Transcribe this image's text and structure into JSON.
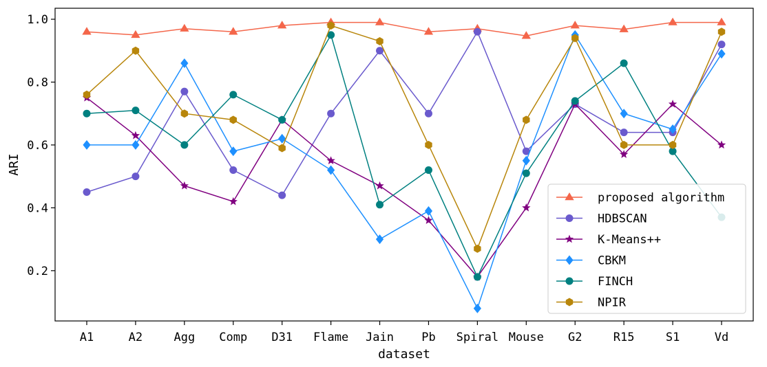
{
  "chart_data": {
    "type": "line",
    "xlabel": "dataset",
    "ylabel": "ARI",
    "categories": [
      "A1",
      "A2",
      "Agg",
      "Comp",
      "D31",
      "Flame",
      "Jain",
      "Pb",
      "Spiral",
      "Mouse",
      "G2",
      "R15",
      "S1",
      "Vd"
    ],
    "ylim": [
      0.04,
      1.035
    ],
    "yticks": [
      "0.2",
      "0.4",
      "0.6",
      "0.8",
      "1.0"
    ],
    "grid": false,
    "legend_position": "lower-right",
    "series": [
      {
        "name": "proposed algorithm",
        "color": "#f4664a",
        "marker": "triangle",
        "values": [
          0.96,
          0.95,
          0.97,
          0.96,
          0.98,
          0.99,
          0.99,
          0.96,
          0.97,
          0.947,
          0.98,
          0.968,
          0.99,
          0.99
        ]
      },
      {
        "name": "HDBSCAN",
        "color": "#6a5acd",
        "marker": "circle",
        "values": [
          0.45,
          0.5,
          0.77,
          0.52,
          0.44,
          0.7,
          0.9,
          0.7,
          0.96,
          0.58,
          0.73,
          0.64,
          0.64,
          0.92
        ]
      },
      {
        "name": "K-Means++",
        "color": "#800080",
        "marker": "star",
        "values": [
          0.75,
          0.63,
          0.47,
          0.42,
          0.68,
          0.55,
          0.47,
          0.36,
          0.18,
          0.4,
          0.73,
          0.57,
          0.73,
          0.6
        ]
      },
      {
        "name": "CBKM",
        "color": "#1e90ff",
        "marker": "diamond",
        "values": [
          0.6,
          0.6,
          0.86,
          0.58,
          0.62,
          0.52,
          0.3,
          0.39,
          0.08,
          0.55,
          0.95,
          0.7,
          0.65,
          0.89
        ]
      },
      {
        "name": "FINCH",
        "color": "#008080",
        "marker": "circle",
        "values": [
          0.7,
          0.71,
          0.6,
          0.76,
          0.68,
          0.95,
          0.41,
          0.52,
          0.18,
          0.51,
          0.74,
          0.86,
          0.58,
          0.37
        ]
      },
      {
        "name": "NPIR",
        "color": "#b8860b",
        "marker": "hexagon",
        "values": [
          0.76,
          0.9,
          0.7,
          0.68,
          0.59,
          0.98,
          0.93,
          0.6,
          0.27,
          0.68,
          0.94,
          0.6,
          0.6,
          0.96
        ]
      }
    ]
  }
}
